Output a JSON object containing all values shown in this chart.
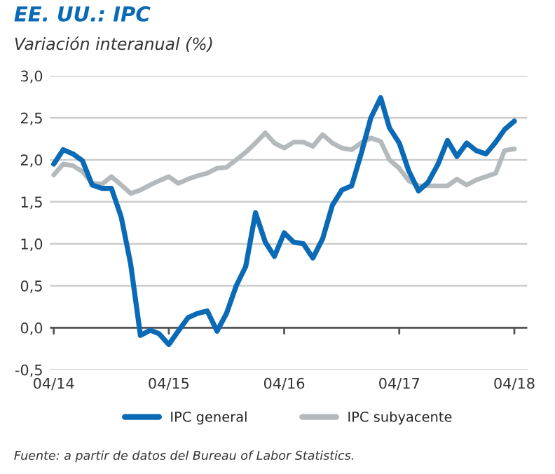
{
  "chart_data": {
    "type": "line",
    "title": "EE. UU.: IPC",
    "subtitle": "Variación interanual (%)",
    "x": [
      "2014-04",
      "2014-05",
      "2014-06",
      "2014-07",
      "2014-08",
      "2014-09",
      "2014-10",
      "2014-11",
      "2014-12",
      "2015-01",
      "2015-02",
      "2015-03",
      "2015-04",
      "2015-05",
      "2015-06",
      "2015-07",
      "2015-08",
      "2015-09",
      "2015-10",
      "2015-11",
      "2015-12",
      "2016-01",
      "2016-02",
      "2016-03",
      "2016-04",
      "2016-05",
      "2016-06",
      "2016-07",
      "2016-08",
      "2016-09",
      "2016-10",
      "2016-11",
      "2016-12",
      "2017-01",
      "2017-02",
      "2017-03",
      "2017-04",
      "2017-05",
      "2017-06",
      "2017-07",
      "2017-08",
      "2017-09",
      "2017-10",
      "2017-11",
      "2017-12",
      "2018-01",
      "2018-02",
      "2018-03",
      "2018-04"
    ],
    "series": [
      {
        "name": "IPC general",
        "color": "#0a6ab6",
        "values": [
          1.95,
          2.12,
          2.07,
          1.99,
          1.7,
          1.66,
          1.66,
          1.32,
          0.76,
          -0.09,
          -0.03,
          -0.07,
          -0.2,
          -0.04,
          0.12,
          0.17,
          0.2,
          -0.04,
          0.17,
          0.5,
          0.73,
          1.37,
          1.02,
          0.85,
          1.13,
          1.02,
          1.0,
          0.83,
          1.06,
          1.46,
          1.64,
          1.69,
          2.07,
          2.5,
          2.74,
          2.38,
          2.2,
          1.87,
          1.63,
          1.73,
          1.94,
          2.23,
          2.04,
          2.2,
          2.11,
          2.07,
          2.21,
          2.36,
          2.46
        ]
      },
      {
        "name": "IPC subyacente",
        "color": "#b4b9bc",
        "values": [
          1.82,
          1.95,
          1.93,
          1.86,
          1.72,
          1.71,
          1.8,
          1.7,
          1.6,
          1.64,
          1.7,
          1.75,
          1.8,
          1.72,
          1.77,
          1.81,
          1.84,
          1.9,
          1.91,
          2.0,
          2.09,
          2.2,
          2.32,
          2.2,
          2.14,
          2.21,
          2.21,
          2.16,
          2.3,
          2.2,
          2.14,
          2.12,
          2.2,
          2.26,
          2.22,
          2.0,
          1.9,
          1.75,
          1.69,
          1.69,
          1.69,
          1.69,
          1.77,
          1.7,
          1.76,
          1.8,
          1.84,
          2.11,
          2.13
        ]
      }
    ],
    "xlim": [
      "2014-03-20",
      "2018-05-12"
    ],
    "xticks": [
      {
        "value": "2014-04",
        "label": "04/14"
      },
      {
        "value": "2015-04",
        "label": "04/15"
      },
      {
        "value": "2016-04",
        "label": "04/16"
      },
      {
        "value": "2017-04",
        "label": "04/17"
      },
      {
        "value": "2018-04",
        "label": "04/18"
      }
    ],
    "ylim": [
      -0.5,
      3.0
    ],
    "yticks": [
      {
        "value": -0.5,
        "label": "-0,5"
      },
      {
        "value": 0,
        "label": "0,0"
      },
      {
        "value": 0.5,
        "label": "0,5"
      },
      {
        "value": 1,
        "label": "1,0"
      },
      {
        "value": 1.5,
        "label": "1,5"
      },
      {
        "value": 2,
        "label": "2,0"
      },
      {
        "value": 2.5,
        "label": "2,5"
      },
      {
        "value": 3,
        "label": "3,0"
      }
    ],
    "ref_lines": [
      {
        "axis": "y",
        "value": 0,
        "color": "#555555"
      }
    ],
    "grid": "y",
    "legend": "bottom",
    "line_style": "solid",
    "marker": "none",
    "annotations": [
      "Fuente: a partir de datos del Bureau of Labor Statistics."
    ]
  }
}
